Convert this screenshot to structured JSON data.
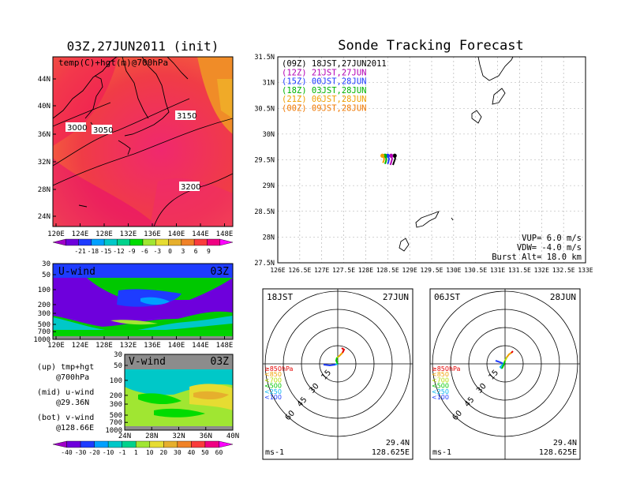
{
  "left_map": {
    "title": "03Z,27JUN2011 (init)",
    "label": "temp(C)+hgt(m)@700hPa",
    "lat_ticks": [
      "44N",
      "40N",
      "36N",
      "32N",
      "28N",
      "24N"
    ],
    "lon_ticks": [
      "120E",
      "124E",
      "128E",
      "132E",
      "136E",
      "140E",
      "144E",
      "148E"
    ],
    "contour_labels": [
      "3000",
      "3050",
      "3150",
      "3200"
    ],
    "colorbar_labels": [
      "-21",
      "-18",
      "-15",
      "-12",
      "-9",
      "-6",
      "-3",
      "0",
      "3",
      "6",
      "9"
    ],
    "colorbar_colors": [
      "#a000c8",
      "#6e00dc",
      "#1e3cff",
      "#00a0ff",
      "#00c8c8",
      "#00d28c",
      "#00dc00",
      "#a0e632",
      "#e6dc32",
      "#e6af2d",
      "#f08228",
      "#fa3c3c",
      "#f00082",
      "#ff00ff"
    ]
  },
  "uwind": {
    "label": "U-wind",
    "time": "03Z",
    "p_ticks": [
      "30",
      "50",
      "100",
      "200",
      "300",
      "500",
      "700",
      "1000"
    ],
    "lon_ticks": [
      "120E",
      "124E",
      "128E",
      "132E",
      "136E",
      "140E",
      "144E",
      "148E"
    ]
  },
  "vwind": {
    "label": "V-wind",
    "time": "03Z",
    "p_ticks": [
      "30",
      "50",
      "100",
      "200",
      "300",
      "500",
      "700",
      "1000"
    ],
    "lat_ticks": [
      "24N",
      "28N",
      "32N",
      "36N",
      "40N"
    ],
    "colorbar_labels": [
      "-40",
      "-30",
      "-20",
      "-10",
      "-1",
      "1",
      "10",
      "20",
      "30",
      "40",
      "50",
      "60"
    ],
    "colorbar_colors": [
      "#a000c8",
      "#6e00dc",
      "#1e3cff",
      "#00a0ff",
      "#00c8c8",
      "#00d28c",
      "#a0e632",
      "#e6dc32",
      "#e6af2d",
      "#f08228",
      "#fa3c3c",
      "#f00082",
      "#ff00ff"
    ]
  },
  "legend_notes": [
    "(up) tmp+hgt",
    "@700hPa",
    "(mid) u-wind",
    "@29.36N",
    "(bot) v-wind",
    "@128.66E"
  ],
  "tracking": {
    "title": "Sonde Tracking Forecast",
    "lat_ticks": [
      "31.5N",
      "31N",
      "30.5N",
      "30N",
      "29.5N",
      "29N",
      "28.5N",
      "28N",
      "27.5N"
    ],
    "lon_ticks": [
      "126E",
      "126.5E",
      "127E",
      "127.5E",
      "128E",
      "128.5E",
      "129E",
      "129.5E",
      "130E",
      "130.5E",
      "131E",
      "131.5E",
      "132E",
      "132.5E",
      "133E"
    ],
    "legend": [
      {
        "text": "(09Z)  18JST,27JUN2011",
        "color": "#000000"
      },
      {
        "text": "(12Z)  21JST,27JUN",
        "color": "#b400b4"
      },
      {
        "text": "(15Z)  00JST,28JUN",
        "color": "#1e3cff"
      },
      {
        "text": "(18Z)  03JST,28JUN",
        "color": "#00b400"
      },
      {
        "text": "(21Z)  06JST,28JUN",
        "color": "#f0a000"
      },
      {
        "text": "(00Z)  09JST,28JUN",
        "color": "#f07800"
      }
    ],
    "info": [
      "VUP=  6.0  m/s",
      "VDW= -4.0  m/s",
      "Burst Alt= 18.0  km"
    ]
  },
  "hodo_left": {
    "time": "18JST",
    "date": "27JUN",
    "ring_labels": [
      "15",
      "30",
      "45",
      "60"
    ],
    "levels": [
      {
        "t": "≥850hPa",
        "c": "#e60000"
      },
      {
        "t": "<850",
        "c": "#f0a000"
      },
      {
        "t": "<700",
        "c": "#b4dc00"
      },
      {
        "t": "<500",
        "c": "#00c800"
      },
      {
        "t": "<250",
        "c": "#00b4f0"
      },
      {
        "t": "<100",
        "c": "#1e3cff"
      }
    ],
    "unit": "ms-1",
    "lat": "29.4N",
    "lon": "128.625E"
  },
  "hodo_right": {
    "time": "06JST",
    "date": "28JUN",
    "ring_labels": [
      "15",
      "30",
      "45",
      "60"
    ],
    "levels": [
      {
        "t": "≥850hPa",
        "c": "#e60000"
      },
      {
        "t": "<850",
        "c": "#f0a000"
      },
      {
        "t": "<700",
        "c": "#b4dc00"
      },
      {
        "t": "<500",
        "c": "#00c800"
      },
      {
        "t": "<250",
        "c": "#00b4f0"
      },
      {
        "t": "<100",
        "c": "#1e3cff"
      }
    ],
    "unit": "ms-1",
    "lat": "29.4N",
    "lon": "128.625E"
  },
  "chart_data": [
    {
      "type": "heatmap",
      "title": "03Z,27JUN2011 (init)",
      "label": "temp(C)+hgt(m)@700hPa",
      "contours": [
        3000,
        3050,
        3150,
        3200
      ]
    },
    {
      "type": "heatmap",
      "label": "U-wind",
      "ylim": [
        1000,
        30
      ]
    },
    {
      "type": "heatmap",
      "label": "V-wind",
      "ylim": [
        1000,
        30
      ]
    },
    {
      "type": "line",
      "title": "Sonde Tracking Forecast",
      "xlim": [
        126,
        133
      ],
      "ylim": [
        27.5,
        31.5
      ],
      "series": [
        {
          "name": "(09Z)",
          "color": "#000000",
          "x": [
            128.62,
            128.64,
            128.67,
            128.66
          ],
          "y": [
            29.4,
            29.45,
            29.52,
            29.58
          ]
        },
        {
          "name": "(12Z)",
          "color": "#b400b4",
          "x": [
            128.56,
            128.58,
            128.6,
            128.58
          ],
          "y": [
            29.4,
            29.45,
            29.52,
            29.58
          ]
        },
        {
          "name": "(15Z)",
          "color": "#1e3cff",
          "x": [
            128.5,
            128.52,
            128.53,
            128.5
          ],
          "y": [
            29.42,
            29.47,
            29.52,
            29.58
          ]
        },
        {
          "name": "(18Z)",
          "color": "#00b400",
          "x": [
            128.44,
            128.46,
            128.47,
            128.44
          ],
          "y": [
            29.42,
            29.47,
            29.52,
            29.58
          ]
        },
        {
          "name": "(21Z)",
          "color": "#f0a000",
          "x": [
            128.39,
            128.41,
            128.42,
            128.38
          ],
          "y": [
            29.44,
            29.48,
            29.53,
            29.58
          ]
        }
      ]
    }
  ]
}
